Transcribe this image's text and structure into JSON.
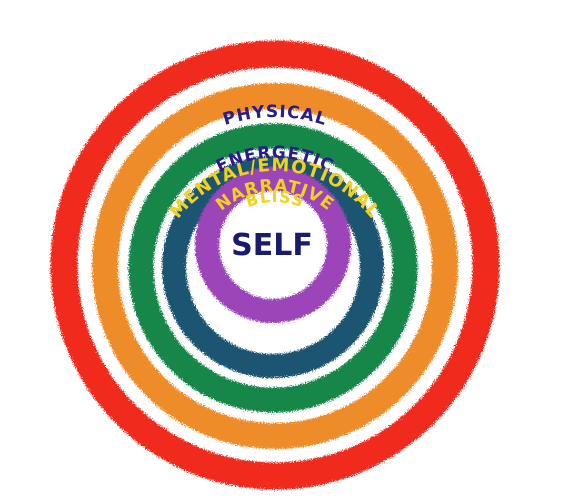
{
  "diagram": {
    "center_label": "SELF",
    "center_label_color": "#1a1a6e",
    "rings": [
      {
        "key": "physical",
        "label": "PHYSICAL",
        "ring_color": "#f0291e",
        "label_color": "#2a1c8a"
      },
      {
        "key": "energetic",
        "label": "ENERGETIC",
        "ring_color": "#ef8c2a",
        "label_color": "#2a1c8a"
      },
      {
        "key": "mental",
        "label": "MENTAL/EMOTIONAL",
        "ring_color": "#13874a",
        "label_color": "#f2d21b"
      },
      {
        "key": "narrative",
        "label": "NARRATIVE",
        "ring_color": "#1d5572",
        "label_color": "#f2d21b"
      },
      {
        "key": "bliss",
        "label": "BLISS",
        "ring_color": "#9b45b8",
        "label_color": "#f2d21b"
      }
    ]
  }
}
